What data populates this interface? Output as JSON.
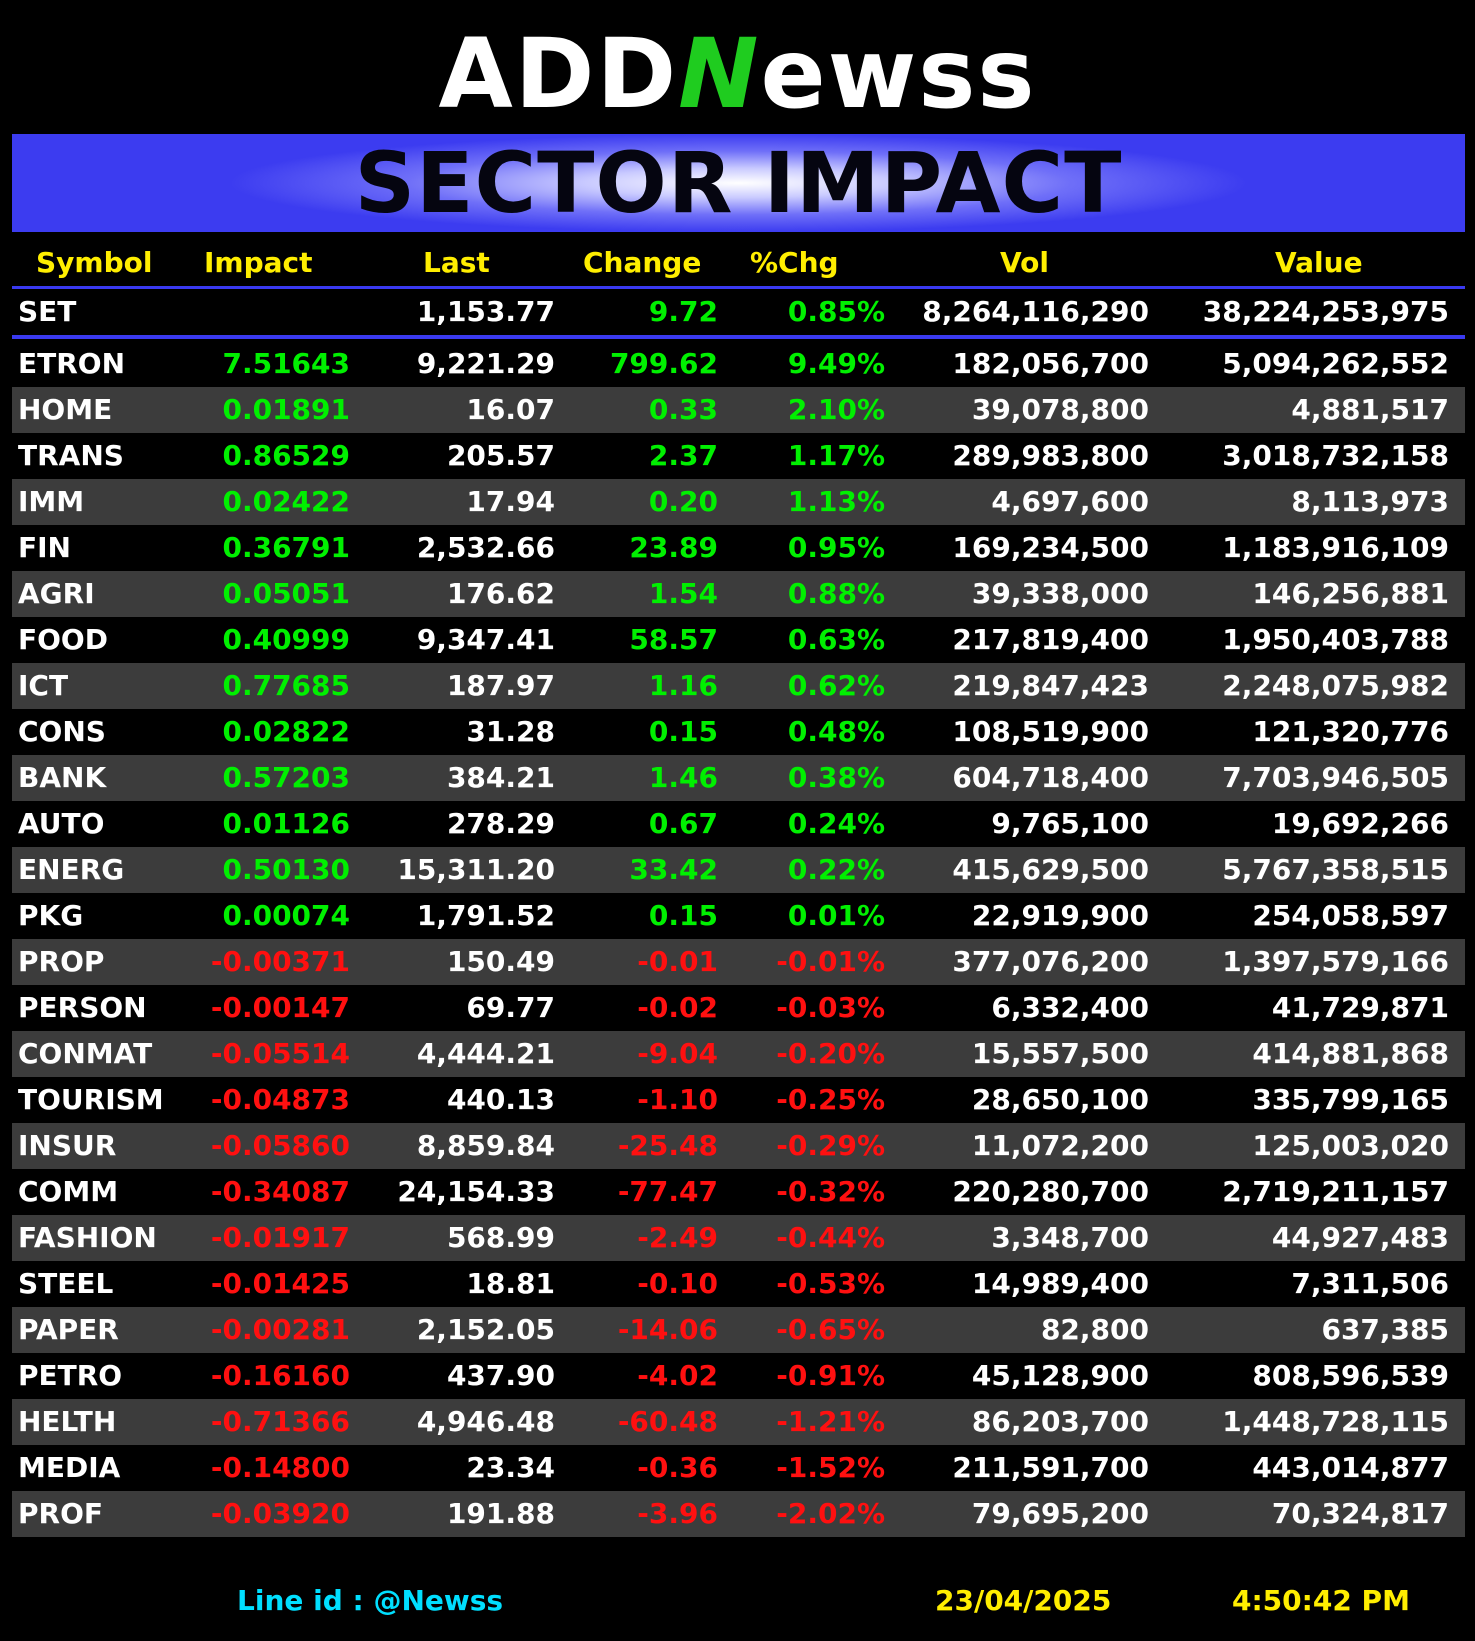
{
  "logo": {
    "part1": "ADD",
    "part2": "N",
    "part3": "ewss"
  },
  "banner": {
    "title": "SECTOR IMPACT"
  },
  "headers": {
    "symbol": "Symbol",
    "impact": "Impact",
    "last": "Last",
    "change": "Change",
    "pct": "%Chg",
    "vol": "Vol",
    "value": "Value"
  },
  "set": {
    "symbol": "SET",
    "impact": "",
    "last": "1,153.77",
    "change": "9.72",
    "pct": "0.85%",
    "vol": "8,264,116,290",
    "value": "38,224,253,975"
  },
  "rows": [
    {
      "symbol": "ETRON",
      "impact": "7.51643",
      "last": "9,221.29",
      "change": "799.62",
      "pct": "9.49%",
      "vol": "182,056,700",
      "value": "5,094,262,552",
      "dir": "pos"
    },
    {
      "symbol": "HOME",
      "impact": "0.01891",
      "last": "16.07",
      "change": "0.33",
      "pct": "2.10%",
      "vol": "39,078,800",
      "value": "4,881,517",
      "dir": "pos"
    },
    {
      "symbol": "TRANS",
      "impact": "0.86529",
      "last": "205.57",
      "change": "2.37",
      "pct": "1.17%",
      "vol": "289,983,800",
      "value": "3,018,732,158",
      "dir": "pos"
    },
    {
      "symbol": "IMM",
      "impact": "0.02422",
      "last": "17.94",
      "change": "0.20",
      "pct": "1.13%",
      "vol": "4,697,600",
      "value": "8,113,973",
      "dir": "pos"
    },
    {
      "symbol": "FIN",
      "impact": "0.36791",
      "last": "2,532.66",
      "change": "23.89",
      "pct": "0.95%",
      "vol": "169,234,500",
      "value": "1,183,916,109",
      "dir": "pos"
    },
    {
      "symbol": "AGRI",
      "impact": "0.05051",
      "last": "176.62",
      "change": "1.54",
      "pct": "0.88%",
      "vol": "39,338,000",
      "value": "146,256,881",
      "dir": "pos"
    },
    {
      "symbol": "FOOD",
      "impact": "0.40999",
      "last": "9,347.41",
      "change": "58.57",
      "pct": "0.63%",
      "vol": "217,819,400",
      "value": "1,950,403,788",
      "dir": "pos"
    },
    {
      "symbol": "ICT",
      "impact": "0.77685",
      "last": "187.97",
      "change": "1.16",
      "pct": "0.62%",
      "vol": "219,847,423",
      "value": "2,248,075,982",
      "dir": "pos"
    },
    {
      "symbol": "CONS",
      "impact": "0.02822",
      "last": "31.28",
      "change": "0.15",
      "pct": "0.48%",
      "vol": "108,519,900",
      "value": "121,320,776",
      "dir": "pos"
    },
    {
      "symbol": "BANK",
      "impact": "0.57203",
      "last": "384.21",
      "change": "1.46",
      "pct": "0.38%",
      "vol": "604,718,400",
      "value": "7,703,946,505",
      "dir": "pos"
    },
    {
      "symbol": "AUTO",
      "impact": "0.01126",
      "last": "278.29",
      "change": "0.67",
      "pct": "0.24%",
      "vol": "9,765,100",
      "value": "19,692,266",
      "dir": "pos"
    },
    {
      "symbol": "ENERG",
      "impact": "0.50130",
      "last": "15,311.20",
      "change": "33.42",
      "pct": "0.22%",
      "vol": "415,629,500",
      "value": "5,767,358,515",
      "dir": "pos"
    },
    {
      "symbol": "PKG",
      "impact": "0.00074",
      "last": "1,791.52",
      "change": "0.15",
      "pct": "0.01%",
      "vol": "22,919,900",
      "value": "254,058,597",
      "dir": "pos"
    },
    {
      "symbol": "PROP",
      "impact": "-0.00371",
      "last": "150.49",
      "change": "-0.01",
      "pct": "-0.01%",
      "vol": "377,076,200",
      "value": "1,397,579,166",
      "dir": "neg"
    },
    {
      "symbol": "PERSON",
      "impact": "-0.00147",
      "last": "69.77",
      "change": "-0.02",
      "pct": "-0.03%",
      "vol": "6,332,400",
      "value": "41,729,871",
      "dir": "neg"
    },
    {
      "symbol": "CONMAT",
      "impact": "-0.05514",
      "last": "4,444.21",
      "change": "-9.04",
      "pct": "-0.20%",
      "vol": "15,557,500",
      "value": "414,881,868",
      "dir": "neg"
    },
    {
      "symbol": "TOURISM",
      "impact": "-0.04873",
      "last": "440.13",
      "change": "-1.10",
      "pct": "-0.25%",
      "vol": "28,650,100",
      "value": "335,799,165",
      "dir": "neg"
    },
    {
      "symbol": "INSUR",
      "impact": "-0.05860",
      "last": "8,859.84",
      "change": "-25.48",
      "pct": "-0.29%",
      "vol": "11,072,200",
      "value": "125,003,020",
      "dir": "neg"
    },
    {
      "symbol": "COMM",
      "impact": "-0.34087",
      "last": "24,154.33",
      "change": "-77.47",
      "pct": "-0.32%",
      "vol": "220,280,700",
      "value": "2,719,211,157",
      "dir": "neg"
    },
    {
      "symbol": "FASHION",
      "impact": "-0.01917",
      "last": "568.99",
      "change": "-2.49",
      "pct": "-0.44%",
      "vol": "3,348,700",
      "value": "44,927,483",
      "dir": "neg"
    },
    {
      "symbol": "STEEL",
      "impact": "-0.01425",
      "last": "18.81",
      "change": "-0.10",
      "pct": "-0.53%",
      "vol": "14,989,400",
      "value": "7,311,506",
      "dir": "neg"
    },
    {
      "symbol": "PAPER",
      "impact": "-0.00281",
      "last": "2,152.05",
      "change": "-14.06",
      "pct": "-0.65%",
      "vol": "82,800",
      "value": "637,385",
      "dir": "neg"
    },
    {
      "symbol": "PETRO",
      "impact": "-0.16160",
      "last": "437.90",
      "change": "-4.02",
      "pct": "-0.91%",
      "vol": "45,128,900",
      "value": "808,596,539",
      "dir": "neg"
    },
    {
      "symbol": "HELTH",
      "impact": "-0.71366",
      "last": "4,946.48",
      "change": "-60.48",
      "pct": "-1.21%",
      "vol": "86,203,700",
      "value": "1,448,728,115",
      "dir": "neg"
    },
    {
      "symbol": "MEDIA",
      "impact": "-0.14800",
      "last": "23.34",
      "change": "-0.36",
      "pct": "-1.52%",
      "vol": "211,591,700",
      "value": "443,014,877",
      "dir": "neg"
    },
    {
      "symbol": "PROF",
      "impact": "-0.03920",
      "last": "191.88",
      "change": "-3.96",
      "pct": "-2.02%",
      "vol": "79,695,200",
      "value": "70,324,817",
      "dir": "neg"
    }
  ],
  "footer": {
    "line_id": "Line id  : @Newss",
    "date": "23/04/2025",
    "time": "4:50:42 PM"
  },
  "colors": {
    "positive": "#00f000",
    "negative": "#ff1010",
    "header": "#ffee00",
    "accent": "#3a3af0",
    "line_id": "#00dfff"
  }
}
